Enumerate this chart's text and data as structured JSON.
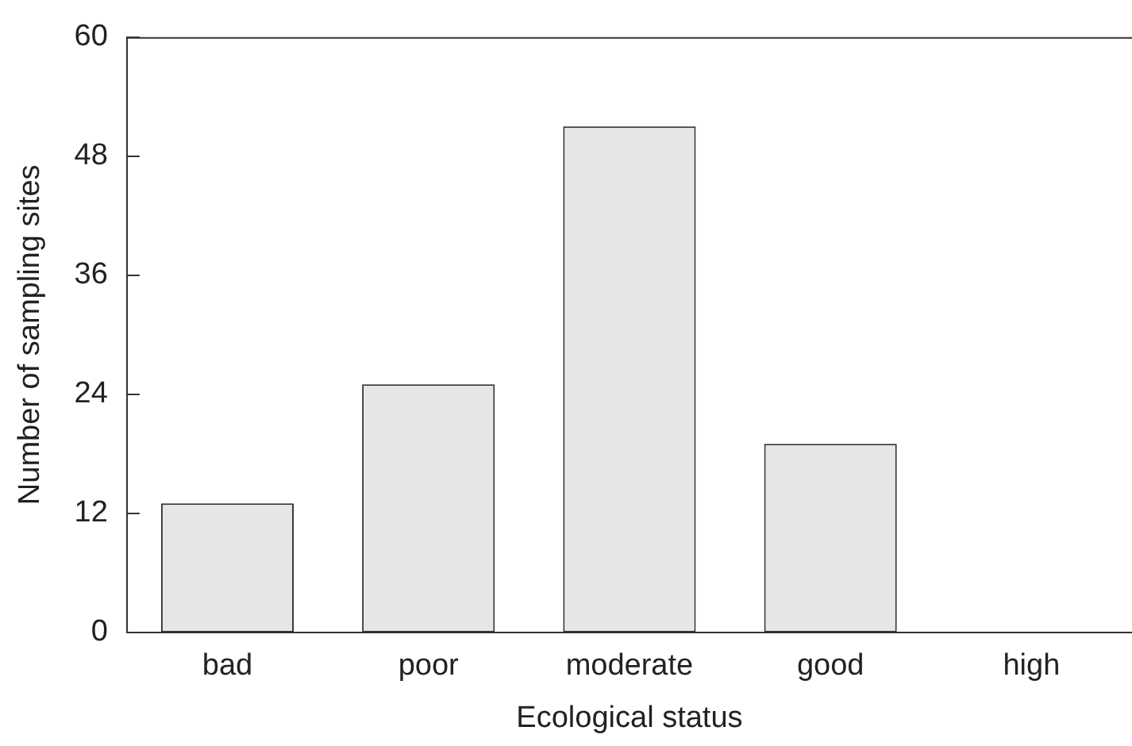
{
  "chart_data": {
    "type": "bar",
    "xlabel": "Ecological status",
    "ylabel": "Number of sampling sites",
    "categories": [
      "bad",
      "poor",
      "moderate",
      "good",
      "high"
    ],
    "values": [
      13,
      25,
      51,
      19,
      0
    ],
    "color": "#e4e6e8",
    "ylim": [
      0,
      60
    ],
    "yticks": [
      0,
      12,
      24,
      36,
      48,
      60
    ],
    "grid": false,
    "legend": false
  }
}
